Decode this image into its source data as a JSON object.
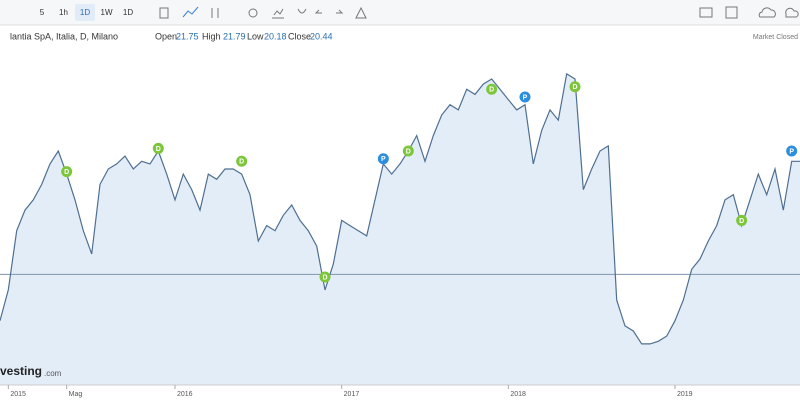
{
  "toolbar": {
    "intervals": [
      "5",
      "1h",
      "1D",
      "1W",
      "1D"
    ],
    "selected": 2
  },
  "header": {
    "symbol": "lantia SpA, Italia, D, Milano",
    "open_label": "Open",
    "open": "21.75",
    "high_label": "High",
    "high": "21.79",
    "low_label": "Low",
    "low": "20.18",
    "close_label": "Close",
    "close": "20.44",
    "status": "Market Closed"
  },
  "watermark": {
    "brand": "vesting",
    "suffix": ".com"
  },
  "chart_data": {
    "type": "area",
    "color": "#4f6f91",
    "fill": "#e3edf8",
    "categories": [
      null,
      "2015",
      null,
      null,
      null,
      null,
      null,
      null,
      "Mag",
      null,
      null,
      null,
      null,
      null,
      null,
      null,
      null,
      null,
      null,
      null,
      null,
      "2016",
      null,
      null,
      null,
      null,
      null,
      null,
      null,
      null,
      null,
      null,
      null,
      null,
      null,
      null,
      null,
      null,
      null,
      null,
      null,
      "2017",
      null,
      null,
      null,
      null,
      null,
      null,
      null,
      null,
      null,
      null,
      null,
      null,
      null,
      null,
      null,
      null,
      null,
      null,
      null,
      "2018",
      null,
      null,
      null,
      null,
      null,
      null,
      null,
      null,
      null,
      null,
      null,
      null,
      null,
      null,
      null,
      null,
      null,
      null,
      null,
      "2019",
      null,
      null,
      null,
      null,
      null,
      null,
      null,
      null,
      null,
      null,
      null,
      null,
      null,
      null,
      null
    ],
    "values": [
      17.5,
      18.7,
      21.0,
      21.8,
      22.2,
      22.8,
      23.6,
      24.1,
      23.2,
      22.2,
      21.0,
      20.1,
      22.8,
      23.4,
      23.6,
      23.9,
      23.4,
      23.7,
      23.6,
      24.1,
      23.2,
      22.2,
      23.2,
      22.6,
      21.8,
      23.2,
      23.0,
      23.4,
      23.4,
      23.2,
      22.4,
      20.6,
      21.2,
      21.0,
      21.6,
      22.0,
      21.4,
      21.0,
      20.4,
      18.7,
      19.7,
      21.4,
      21.2,
      21.0,
      20.8,
      22.2,
      23.6,
      23.2,
      23.6,
      24.1,
      24.7,
      23.7,
      24.7,
      25.5,
      25.9,
      25.7,
      26.5,
      26.3,
      26.7,
      26.9,
      26.5,
      26.1,
      25.7,
      25.9,
      23.6,
      24.9,
      25.7,
      25.3,
      27.1,
      26.9,
      22.6,
      23.4,
      24.1,
      24.3,
      18.3,
      17.3,
      17.1,
      16.6,
      16.6,
      16.7,
      16.9,
      17.5,
      18.3,
      19.5,
      19.9,
      20.6,
      21.2,
      22.2,
      22.4,
      21.2,
      22.2,
      23.2,
      22.4,
      23.4,
      21.8,
      23.7,
      23.7
    ],
    "ylim": [
      15,
      29
    ],
    "reference_line": 19.3,
    "annotations": [
      {
        "label": "D",
        "index": 8,
        "value": 23.3
      },
      {
        "label": "D",
        "index": 19,
        "value": 24.2
      },
      {
        "label": "D",
        "index": 29,
        "value": 23.7
      },
      {
        "label": "D",
        "index": 39,
        "value": 19.2
      },
      {
        "label": "D",
        "index": 49,
        "value": 24.1
      },
      {
        "label": "D",
        "index": 59,
        "value": 26.5
      },
      {
        "label": "D",
        "index": 69,
        "value": 26.6
      },
      {
        "label": "D",
        "index": 89,
        "value": 21.4
      },
      {
        "label": "P",
        "index": 46,
        "value": 23.8
      },
      {
        "label": "P",
        "index": 63,
        "value": 26.2
      },
      {
        "label": "P",
        "index": 95,
        "value": 24.1
      }
    ]
  }
}
